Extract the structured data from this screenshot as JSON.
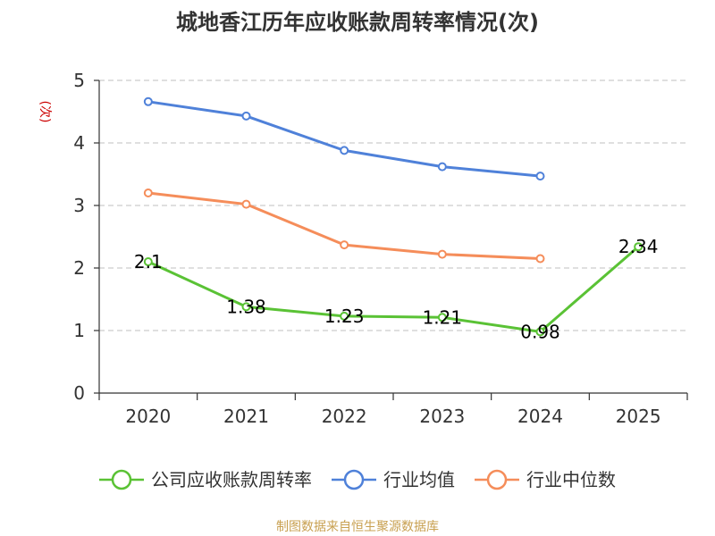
{
  "chart_data": {
    "type": "line",
    "title": "城地香江历年应收账款周转率情况(次)",
    "ylabel": "(次)",
    "xlabel": "",
    "categories": [
      "2020",
      "2021",
      "2022",
      "2023",
      "2024",
      "2025"
    ],
    "ylim": [
      0,
      5
    ],
    "yticks": [
      "0",
      "1",
      "2",
      "3",
      "4",
      "5"
    ],
    "grid": true,
    "legend_position": "bottom",
    "series": [
      {
        "name": "公司应收账款周转率",
        "color": "#5ac235",
        "values": [
          2.1,
          1.38,
          1.23,
          1.21,
          0.98,
          2.34
        ],
        "labels": [
          "2.1",
          "1.38",
          "1.23",
          "1.21",
          "0.98",
          "2.34"
        ]
      },
      {
        "name": "行业均值",
        "color": "#4f81d9",
        "values": [
          4.66,
          4.43,
          3.88,
          3.62,
          3.47,
          null
        ]
      },
      {
        "name": "行业中位数",
        "color": "#f58d5a",
        "values": [
          3.2,
          3.02,
          2.37,
          2.22,
          2.15,
          null
        ]
      }
    ]
  },
  "source": "制图数据来自恒生聚源数据库",
  "colors": {
    "ylabel": "#cc0000",
    "source": "#c8a050",
    "grid": "#cccccc",
    "axis": "#333333"
  }
}
